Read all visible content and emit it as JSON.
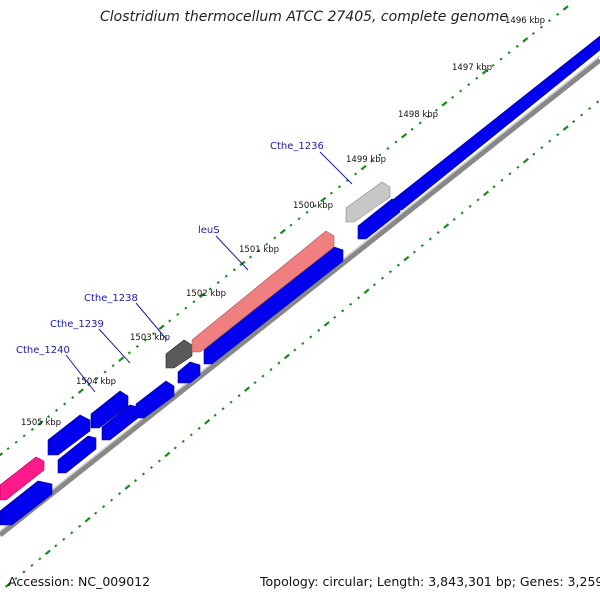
{
  "title": "Clostridium thermocellum ATCC 27405, complete genome",
  "footer": {
    "accession": "Accession: NC_009012",
    "stats": "Topology: circular; Length: 3,843,301 bp; Genes: 3,259"
  },
  "scale_labels": [
    "1496 kbp",
    "1497 kbp",
    "1498 kbp",
    "1499 kbp",
    "1500 kbp",
    "1501 kbp",
    "1502 kbp",
    "1503 kbp",
    "1504 kbp",
    "1505 kbp"
  ],
  "gene_labels": [
    "Cthe_1236",
    "leuS",
    "Cthe_1238",
    "Cthe_1239",
    "Cthe_1240"
  ],
  "colors": {
    "forward_gene": "#0000ee",
    "reverse_gene": "#0000ee",
    "leuS": "#f08080",
    "pink_gene": "#ff1a8c",
    "light_grey_gene": "#c8c8c8",
    "dark_grey_gene": "#5a5a5a",
    "tick": "#1a8a1a",
    "backbone": "#888888"
  }
}
